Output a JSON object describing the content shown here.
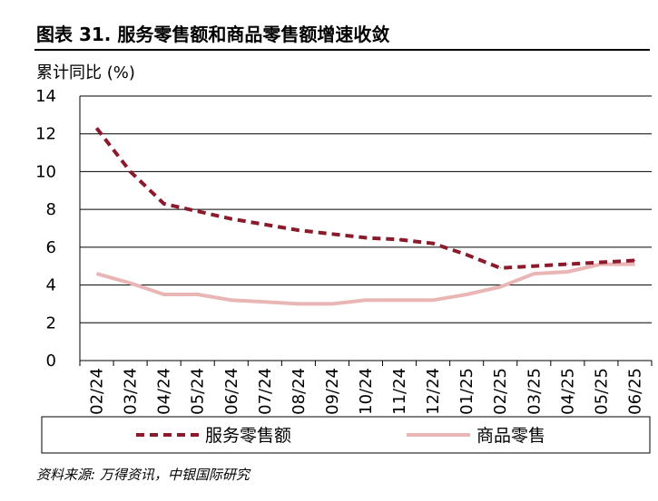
{
  "header": {
    "title": "图表 31. 服务零售额和商品零售额增速收敛",
    "ylabel": "累计同比 (%)",
    "source": "资料来源: 万得资讯，中银国际研究"
  },
  "chart_data": {
    "type": "line",
    "title": "图表 31. 服务零售额和商品零售额增速收敛",
    "xlabel": "",
    "ylabel": "累计同比 (%)",
    "categories": [
      "02/24",
      "03/24",
      "04/24",
      "05/24",
      "06/24",
      "07/24",
      "08/24",
      "09/24",
      "10/24",
      "11/24",
      "12/24",
      "01/25",
      "02/25",
      "03/25",
      "04/25",
      "05/25",
      "06/25"
    ],
    "ylim": [
      0,
      14
    ],
    "yticks": [
      0,
      2,
      4,
      6,
      8,
      10,
      12,
      14
    ],
    "grid": true,
    "legend_position": "bottom",
    "series": [
      {
        "name": "服务零售额",
        "values": [
          12.3,
          10.0,
          8.3,
          7.9,
          7.5,
          7.2,
          6.9,
          6.7,
          6.5,
          6.4,
          6.2,
          5.6,
          4.9,
          5.0,
          5.1,
          5.2,
          5.3
        ],
        "color": "#8b1a2b",
        "style": "dashed"
      },
      {
        "name": "商品零售",
        "values": [
          4.6,
          4.1,
          3.5,
          3.5,
          3.2,
          3.1,
          3.0,
          3.0,
          3.2,
          3.2,
          3.2,
          3.5,
          3.9,
          4.6,
          4.7,
          5.1,
          5.1
        ],
        "color": "#eab5b5",
        "style": "solid"
      }
    ]
  }
}
